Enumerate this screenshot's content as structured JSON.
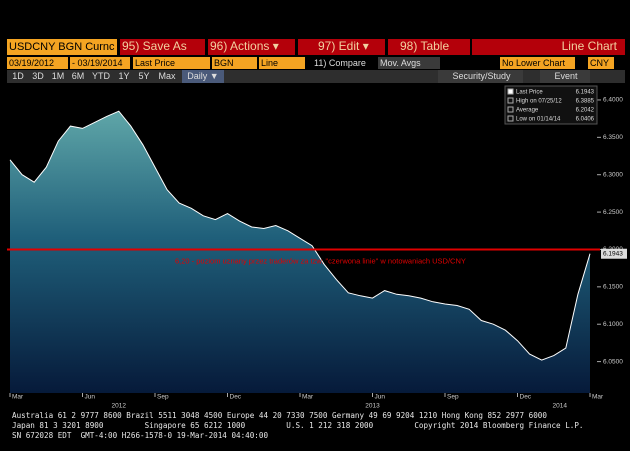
{
  "toolbar": {
    "security": "USDCNY BGN Curnc",
    "buttons": [
      "95) Save As",
      "96) Actions ▾",
      "97) Edit ▾",
      "98) Table"
    ],
    "view": "Line Chart"
  },
  "fields": [
    "03/19/2012",
    "- 03/19/2014",
    "Last Price",
    "BGN",
    "Line",
    "11) Compare",
    "Mov. Avgs",
    "No Lower Chart",
    "CNY"
  ],
  "periods": [
    "1D",
    "3D",
    "1M",
    "6M",
    "YTD",
    "1Y",
    "5Y",
    "Max",
    "Daily ▼"
  ],
  "tools": [
    "Security/Study",
    "Event"
  ],
  "chart_data": {
    "type": "area",
    "categories": [
      "Mar",
      null,
      null,
      null,
      null,
      null,
      "Jun",
      null,
      null,
      null,
      null,
      null,
      "Sep",
      null,
      null,
      null,
      null,
      null,
      "Dec",
      null,
      null,
      null,
      null,
      null,
      "Mar",
      null,
      null,
      null,
      null,
      null,
      "Jun",
      null,
      null,
      null,
      null,
      null,
      "Sep",
      null,
      null,
      null,
      null,
      null,
      "Dec",
      null,
      null,
      null,
      null,
      null,
      "Mar"
    ],
    "values": [
      6.32,
      6.3,
      6.29,
      6.31,
      6.345,
      6.365,
      6.362,
      6.37,
      6.378,
      6.385,
      6.365,
      6.34,
      6.31,
      6.28,
      6.262,
      6.255,
      6.245,
      6.24,
      6.248,
      6.238,
      6.23,
      6.228,
      6.232,
      6.225,
      6.215,
      6.205,
      6.18,
      6.16,
      6.142,
      6.138,
      6.135,
      6.145,
      6.14,
      6.138,
      6.135,
      6.13,
      6.127,
      6.125,
      6.12,
      6.105,
      6.1,
      6.092,
      6.078,
      6.06,
      6.052,
      6.058,
      6.068,
      6.14,
      6.1943
    ],
    "color": "#ffffff",
    "year_labels": [
      "2012",
      "2013",
      "2014"
    ],
    "ylim": [
      6.008,
      6.42
    ],
    "yticks": [
      {
        "value": 6.05,
        "label": "6.0500"
      },
      {
        "value": 6.1,
        "label": "6.1000"
      },
      {
        "value": 6.15,
        "label": "6.1500"
      },
      {
        "value": 6.2,
        "label": "6.2000"
      },
      {
        "value": 6.25,
        "label": "6.2500"
      },
      {
        "value": 6.3,
        "label": "6.3000"
      },
      {
        "value": 6.35,
        "label": "6.3500"
      },
      {
        "value": 6.4,
        "label": "6.4000"
      }
    ],
    "reference_line": {
      "value": 6.2,
      "color": "#e00000",
      "label": "6,20 - poziom uznany przez traderów za tzw. \"czerwona linie\" w notowaniach USD/CNY"
    },
    "stats": [
      {
        "label": "Last Price",
        "value": 6.1943
      },
      {
        "label": "High on 07/25/12",
        "value": 6.3885
      },
      {
        "label": "Average",
        "value": 6.2042
      },
      {
        "label": "Low on 01/14/14",
        "value": 6.0406
      }
    ]
  },
  "footer": [
    "Australia 61 2 9777 8600 Brazil 5511 3048 4500 Europe 44 20 7330 7500 Germany 49 69 9204 1210 Hong Kong 852 2977 6000",
    "Japan 81 3 3201 8900         Singapore 65 6212 1000         U.S. 1 212 318 2000         Copyright 2014 Bloomberg Finance L.P.",
    "SN 672028 EDT  GMT-4:00 H266-1578-0 19-Mar-2014 04:40:00"
  ]
}
